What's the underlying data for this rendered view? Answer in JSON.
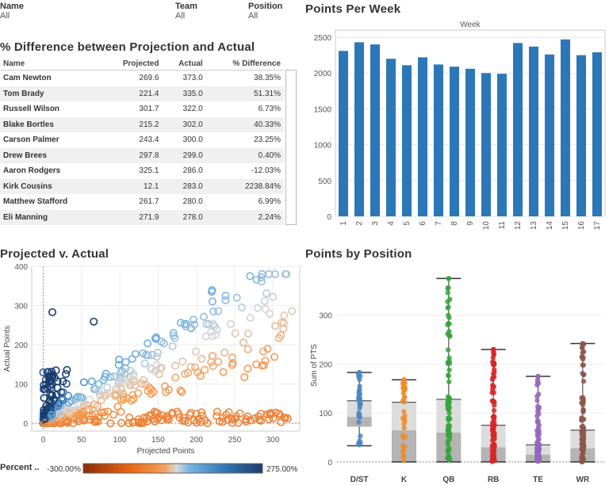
{
  "filters": [
    {
      "label": "Name",
      "value": "All"
    },
    {
      "label": "Team",
      "value": "All"
    },
    {
      "label": "Position",
      "value": "All"
    }
  ],
  "table": {
    "title": "% Difference between Projection and Actual",
    "headers": [
      "Name",
      "Projected",
      "Actual",
      "% Difference"
    ],
    "rows": [
      [
        "Cam Newton",
        "269.6",
        "373.0",
        "38.35%"
      ],
      [
        "Tom Brady",
        "221.4",
        "335.0",
        "51.31%"
      ],
      [
        "Russell Wilson",
        "301.7",
        "322.0",
        "6.73%"
      ],
      [
        "Blake Bortles",
        "215.2",
        "302.0",
        "40.33%"
      ],
      [
        "Carson Palmer",
        "243.4",
        "300.0",
        "23.25%"
      ],
      [
        "Drew Brees",
        "297.8",
        "299.0",
        "0.40%"
      ],
      [
        "Aaron Rodgers",
        "325.1",
        "286.0",
        "-12.03%"
      ],
      [
        "Kirk Cousins",
        "12.1",
        "283.0",
        "2238.84%"
      ],
      [
        "Matthew Stafford",
        "261.7",
        "280.0",
        "6.99%"
      ],
      [
        "Eli Manning",
        "271.9",
        "278.0",
        "2.24%"
      ]
    ]
  },
  "colors": {
    "bar": "#2b77b8",
    "orange": "#f08b2c",
    "darkblue": "#1f4e7a",
    "grid": "#e4e4e4"
  },
  "chart_data": [
    {
      "type": "bar",
      "title": "Points Per Week",
      "xlabel": "Week",
      "ylabel": "",
      "categories": [
        "1",
        "2",
        "3",
        "4",
        "5",
        "6",
        "7",
        "8",
        "9",
        "10",
        "11",
        "12",
        "13",
        "14",
        "15",
        "16",
        "17"
      ],
      "values": [
        2310,
        2430,
        2400,
        2200,
        2110,
        2220,
        2120,
        2090,
        2060,
        2000,
        1990,
        2420,
        2370,
        2260,
        2470,
        2250,
        2290
      ],
      "ylim": [
        0,
        2600
      ],
      "yticks": [
        0,
        500,
        1000,
        1500,
        2000,
        2500
      ]
    },
    {
      "type": "scatter",
      "title": "Projected v. Actual",
      "xlabel": "Projected Points",
      "ylabel": "Actual Points",
      "xlim": [
        -15,
        335
      ],
      "ylim": [
        -20,
        400
      ],
      "xticks": [
        0,
        50,
        100,
        150,
        200,
        250,
        300
      ],
      "yticks": [
        0,
        100,
        200,
        300,
        400
      ],
      "color_legend": {
        "label": "Percent ..",
        "min": "-300.00%",
        "max": "275.00%"
      }
    },
    {
      "type": "box",
      "title": "Points by Position",
      "ylabel": "Sum of PTS",
      "ylim": [
        -5,
        400
      ],
      "yticks": [
        0,
        100,
        200,
        300
      ],
      "categories": [
        "D/ST",
        "K",
        "QB",
        "RB",
        "TE",
        "WR"
      ],
      "colors": [
        "#4a86c0",
        "#f08b2c",
        "#36a43a",
        "#d62728",
        "#9467bd",
        "#8c564b"
      ],
      "boxes": [
        {
          "min": 33,
          "q1": 72,
          "median": 92,
          "q3": 125,
          "max": 183
        },
        {
          "min": 0,
          "q1": 1,
          "median": 65,
          "q3": 122,
          "max": 168
        },
        {
          "min": 0,
          "q1": 0,
          "median": 60,
          "q3": 128,
          "max": 375
        },
        {
          "min": 0,
          "q1": 0,
          "median": 30,
          "q3": 75,
          "max": 230
        },
        {
          "min": 0,
          "q1": 0,
          "median": 15,
          "q3": 35,
          "max": 175
        },
        {
          "min": 0,
          "q1": 0,
          "median": 28,
          "q3": 65,
          "max": 242
        }
      ]
    }
  ]
}
